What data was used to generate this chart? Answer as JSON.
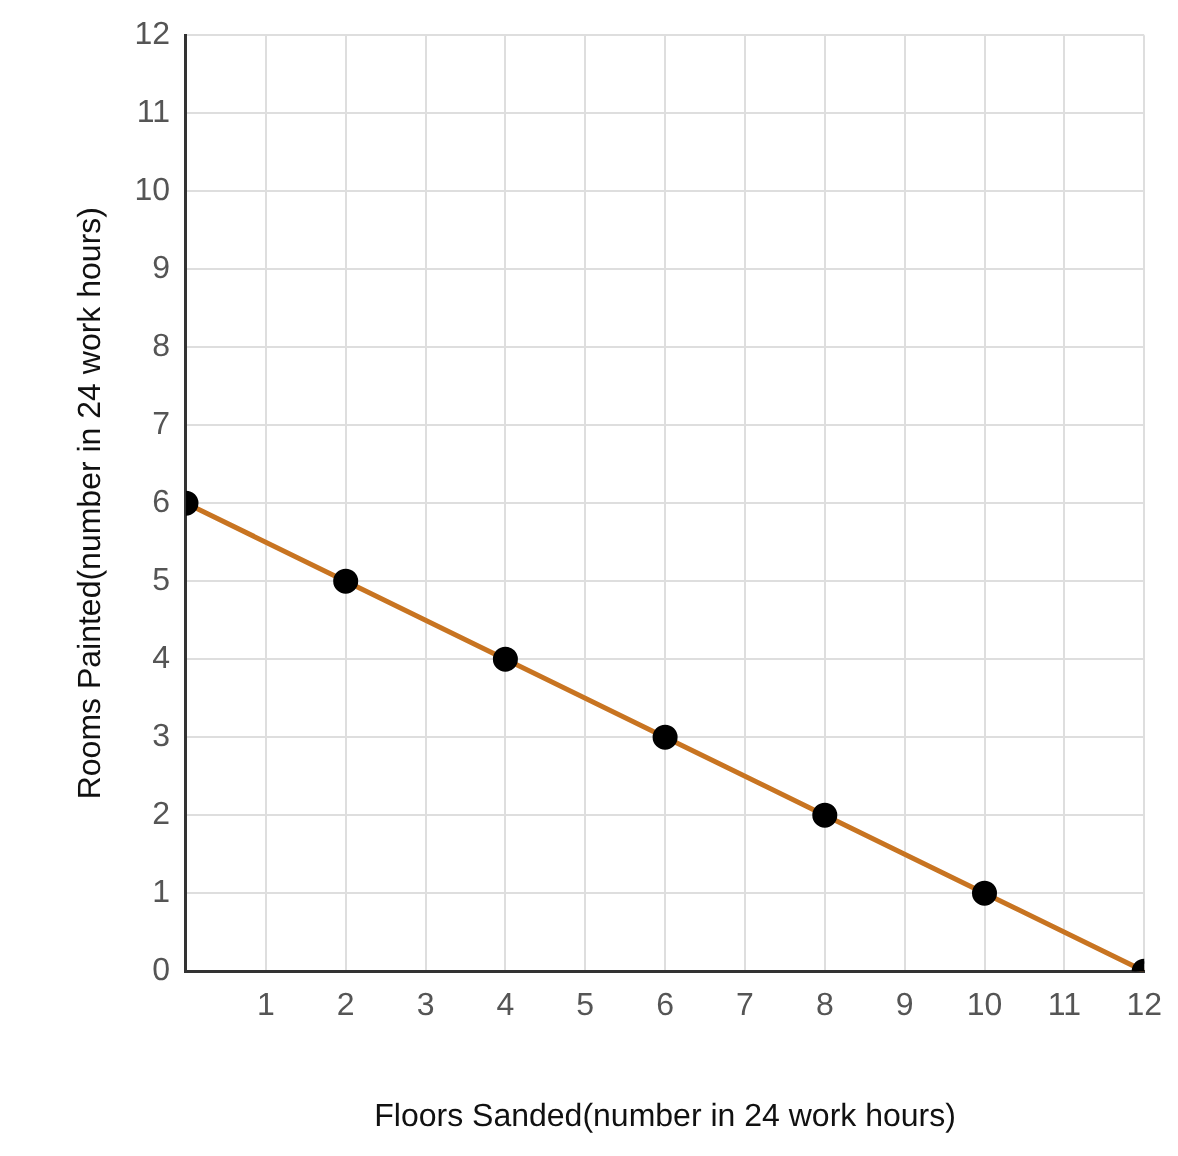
{
  "chart_data": {
    "type": "line",
    "xlabel": "Floors Sanded(number in 24 work hours)",
    "ylabel": "Rooms Painted(number in 24 work hours)",
    "x": [
      0,
      2,
      4,
      6,
      8,
      10,
      12
    ],
    "series": [
      {
        "color": "#c87421",
        "values": [
          6,
          5,
          4,
          3,
          2,
          1,
          0
        ]
      }
    ],
    "xlim": [
      0,
      12
    ],
    "ylim": [
      0,
      12
    ],
    "xticks": [
      1,
      2,
      3,
      4,
      5,
      6,
      7,
      8,
      9,
      10,
      11,
      12
    ],
    "yticks": [
      0,
      1,
      2,
      3,
      4,
      5,
      6,
      7,
      8,
      9,
      10,
      11,
      12
    ],
    "grid": true,
    "legend": false,
    "marker": "circle",
    "line_style": "solid"
  }
}
